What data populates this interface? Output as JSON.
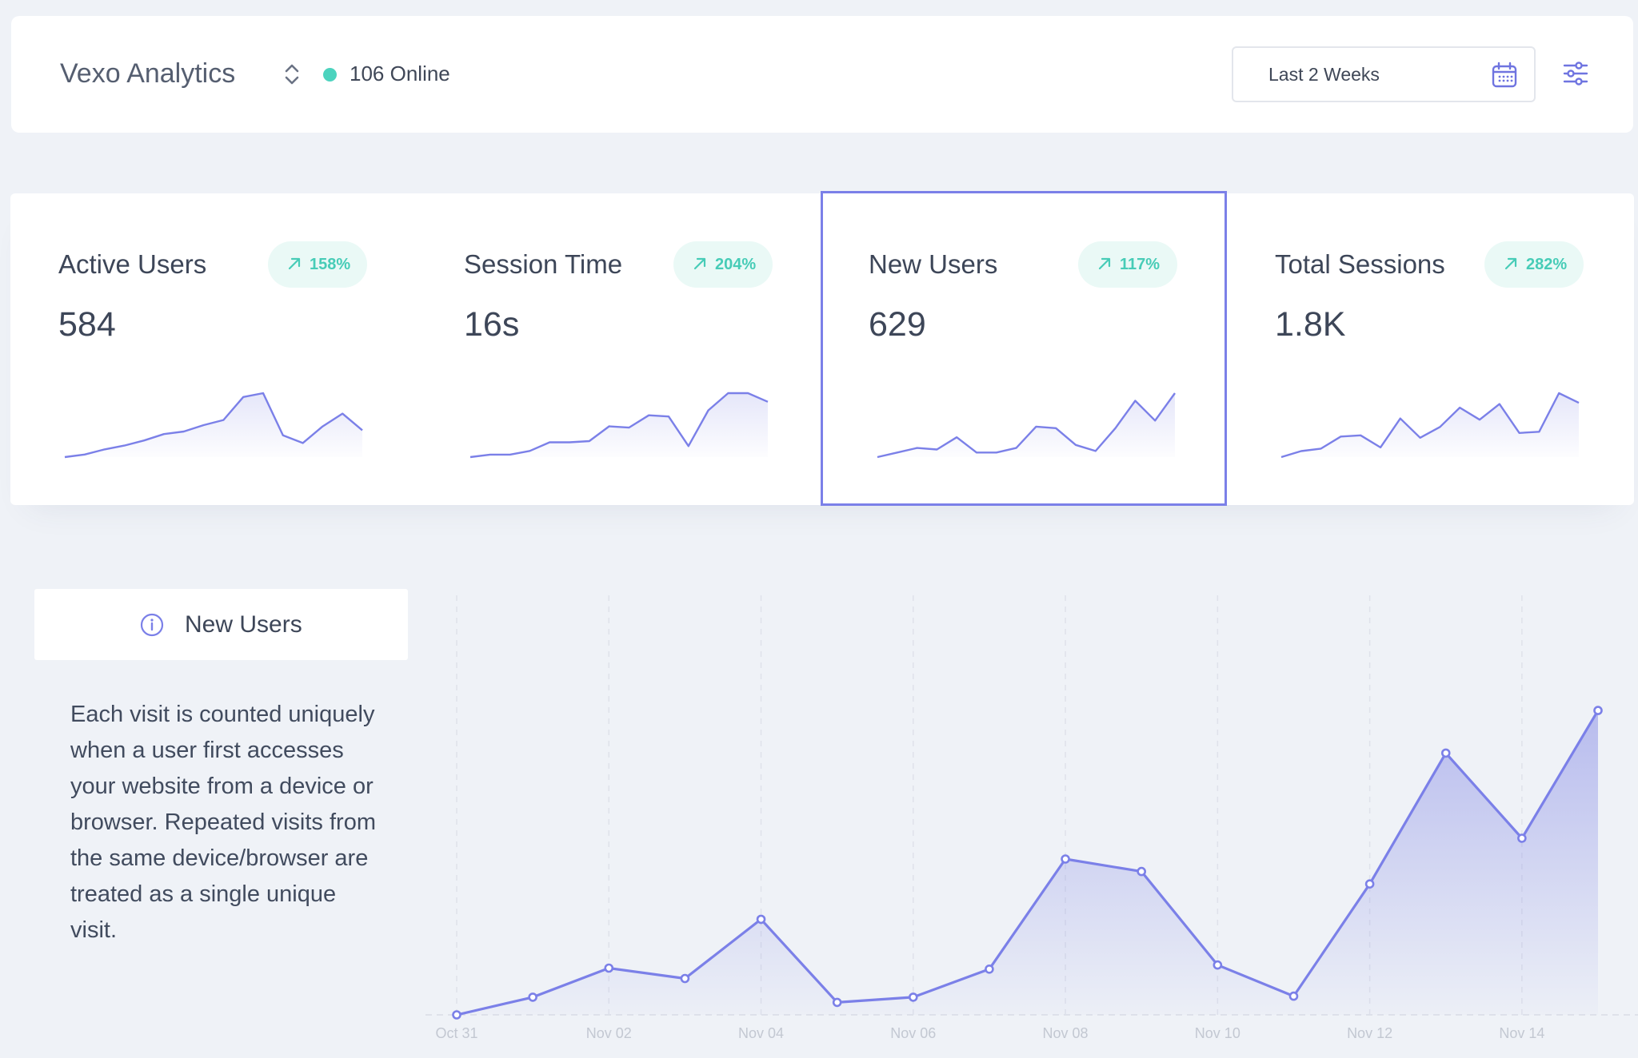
{
  "header": {
    "app_title": "Vexo Analytics",
    "online_count_label": "106 Online",
    "online_color": "#4cd3be",
    "date_range_label": "Last 2 Weeks",
    "switcher_icon": "chevron-up-down-icon",
    "calendar_icon": "calendar-icon",
    "filter_icon": "sliders-icon"
  },
  "colors": {
    "accent": "#7b80e8",
    "positive": "#47ccb7",
    "positive_bg": "#eaf9f6"
  },
  "metrics": [
    {
      "title": "Active Users",
      "value": "584",
      "change": "158%",
      "trend": "up",
      "selected": false,
      "spark": [
        0,
        2,
        6,
        9,
        13,
        18,
        20,
        25,
        29,
        47,
        50,
        17,
        11,
        24,
        34,
        21
      ]
    },
    {
      "title": "Session Time",
      "value": "16s",
      "change": "204%",
      "trend": "up",
      "selected": false,
      "spark": [
        0,
        2,
        2,
        5,
        12,
        12,
        13,
        25,
        24,
        34,
        33,
        9,
        38,
        52,
        52,
        45
      ]
    },
    {
      "title": "New Users",
      "value": "629",
      "change": "117%",
      "trend": "up",
      "selected": true,
      "spark": [
        0,
        3,
        6,
        5,
        13,
        3,
        3,
        6,
        20,
        19,
        8,
        4,
        19,
        37,
        24,
        42
      ]
    },
    {
      "title": "Total Sessions",
      "value": "1.8K",
      "change": "282%",
      "trend": "up",
      "selected": false,
      "spark": [
        0,
        5,
        7,
        17,
        18,
        8,
        32,
        16,
        25,
        41,
        31,
        44,
        20,
        21,
        53,
        45
      ]
    }
  ],
  "detail": {
    "tab_label": "New Users",
    "info_icon": "info-icon",
    "description": "Each visit is counted uniquely when a user first accesses your website from a device or browser. Repeated visits from the same device/browser are treated as a single unique visit."
  },
  "chart_data": {
    "type": "area",
    "title": "",
    "xlabel": "",
    "ylabel": "",
    "x": [
      "Oct 31",
      "Nov 01",
      "Nov 02",
      "Nov 03",
      "Nov 04",
      "Nov 05",
      "Nov 06",
      "Nov 07",
      "Nov 08",
      "Nov 09",
      "Nov 10",
      "Nov 11",
      "Nov 12",
      "Nov 13",
      "Nov 14",
      "Nov 15"
    ],
    "tick_labels": [
      "Oct 31",
      "Nov 02",
      "Nov 04",
      "Nov 06",
      "Nov 08",
      "Nov 10",
      "Nov 12",
      "Nov 14"
    ],
    "series": [
      {
        "values": [
          0,
          17,
          45,
          35,
          92,
          12,
          17,
          44,
          150,
          138,
          48,
          18,
          126,
          252,
          170,
          293
        ]
      }
    ],
    "ylim": [
      0,
      300
    ],
    "grid": "vertical-dashed",
    "legend": "none",
    "color": "#7b80e8"
  }
}
